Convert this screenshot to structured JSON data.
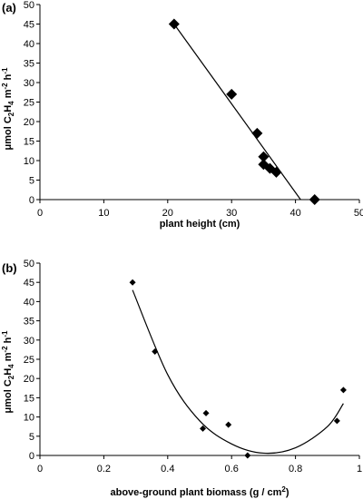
{
  "chart_data": [
    {
      "panel_label": "(a)",
      "type": "scatter",
      "marker": "diamond-large",
      "xlabel": "plant height (cm)",
      "ylabel": {
        "prefix": "μmol C",
        "sub1": "2",
        "mid": "H",
        "sub2": "4",
        "after": " m",
        "sup1": "-2",
        "after2": " h",
        "sup2": "-1"
      },
      "xlim": [
        0,
        50
      ],
      "ylim": [
        0,
        50
      ],
      "x_ticks": [
        0,
        10,
        20,
        30,
        40,
        50
      ],
      "y_ticks": [
        0,
        5,
        10,
        15,
        20,
        25,
        30,
        35,
        40,
        45,
        50
      ],
      "points": [
        {
          "x": 21,
          "y": 45
        },
        {
          "x": 30,
          "y": 27
        },
        {
          "x": 34,
          "y": 17
        },
        {
          "x": 35,
          "y": 11
        },
        {
          "x": 35,
          "y": 9
        },
        {
          "x": 36,
          "y": 8
        },
        {
          "x": 37,
          "y": 7
        },
        {
          "x": 43,
          "y": 0
        }
      ],
      "trendline": {
        "type": "linear",
        "x0": 21,
        "y0": 45,
        "x1": 40.8,
        "y1": 0
      }
    },
    {
      "panel_label": "(b)",
      "type": "scatter",
      "marker": "diamond-small",
      "xlabel": {
        "text": "above-ground plant biomass (g / cm",
        "sup": "2",
        "after": ")"
      },
      "ylabel": {
        "prefix": "μmol C",
        "sub1": "2",
        "mid": "H",
        "sub2": "4",
        "after": " m",
        "sup1": "-2",
        "after2": " h",
        "sup2": "-1"
      },
      "xlim": [
        0,
        1
      ],
      "ylim": [
        0,
        50
      ],
      "x_ticks": [
        0,
        0.2,
        0.4,
        0.6,
        0.8,
        1
      ],
      "y_ticks": [
        0,
        5,
        10,
        15,
        20,
        25,
        30,
        35,
        40,
        45,
        50
      ],
      "points": [
        {
          "x": 0.29,
          "y": 45
        },
        {
          "x": 0.36,
          "y": 27
        },
        {
          "x": 0.52,
          "y": 11
        },
        {
          "x": 0.51,
          "y": 7
        },
        {
          "x": 0.59,
          "y": 8
        },
        {
          "x": 0.65,
          "y": 0
        },
        {
          "x": 0.93,
          "y": 9
        },
        {
          "x": 0.95,
          "y": 17
        }
      ],
      "trendline": {
        "type": "polynomial",
        "x_range": [
          0.29,
          0.95
        ],
        "control_points": [
          {
            "x": 0.29,
            "y": 43
          },
          {
            "x": 0.4,
            "y": 21
          },
          {
            "x": 0.5,
            "y": 9
          },
          {
            "x": 0.6,
            "y": 3
          },
          {
            "x": 0.7,
            "y": 0.6
          },
          {
            "x": 0.8,
            "y": 2
          },
          {
            "x": 0.9,
            "y": 7.5
          },
          {
            "x": 0.95,
            "y": 13.5
          }
        ]
      }
    }
  ]
}
